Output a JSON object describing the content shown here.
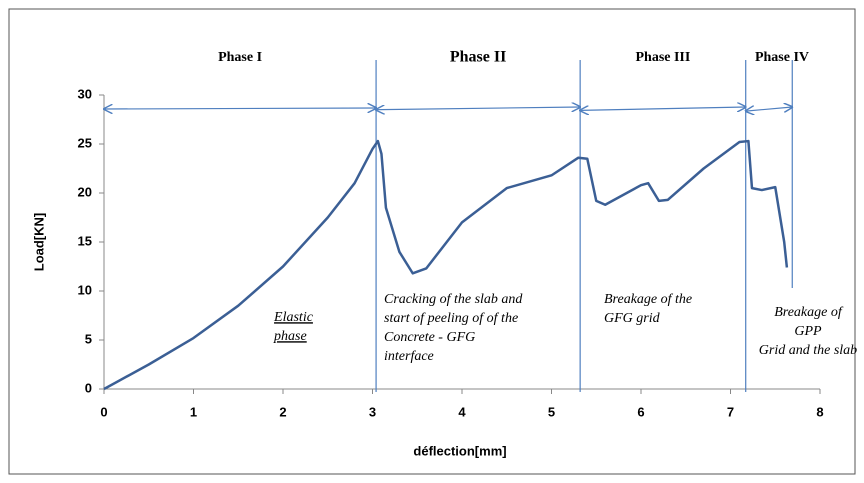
{
  "chart_data": {
    "type": "line",
    "x_label": "déflection[mm]",
    "y_label": "Load[KN]",
    "x": [
      0,
      0.5,
      1,
      1.5,
      2,
      2.5,
      2.8,
      3.0,
      3.06,
      3.1,
      3.15,
      3.3,
      3.45,
      3.6,
      4,
      4.5,
      5,
      5.3,
      5.4,
      5.5,
      5.6,
      6,
      6.08,
      6.2,
      6.3,
      6.7,
      7.1,
      7.2,
      7.24,
      7.35,
      7.5,
      7.6,
      7.63
    ],
    "values": [
      0,
      2.5,
      5.2,
      8.5,
      12.5,
      17.5,
      21,
      24.5,
      25.3,
      24,
      18.5,
      14,
      11.8,
      12.3,
      17,
      20.5,
      21.8,
      23.6,
      23.5,
      19.2,
      18.8,
      20.8,
      21,
      19.2,
      19.3,
      22.5,
      25.2,
      25.3,
      20.5,
      20.3,
      20.6,
      15,
      12.4
    ],
    "color": "#3b5f95",
    "xlim": [
      0,
      8
    ],
    "xticks": [
      0,
      1,
      2,
      3,
      4,
      5,
      6,
      7,
      8
    ],
    "ylim": [
      0,
      30
    ],
    "yticks": [
      0,
      5,
      10,
      15,
      20,
      25,
      30
    ],
    "phases": [
      {
        "label": "Phase I",
        "start": 0,
        "end": 3.04,
        "description": [
          "Elastic",
          "phase"
        ]
      },
      {
        "label": "Phase II",
        "start": 3.04,
        "end": 5.32,
        "description": [
          "Cracking of the slab and",
          "start of peeling of of the",
          " Concrete - GFG",
          " interface"
        ]
      },
      {
        "label": "Phase III",
        "start": 5.32,
        "end": 7.17,
        "description": [
          "Breakage  of  the",
          "GFG grid"
        ]
      },
      {
        "label": "Phase IV",
        "start": 7.17,
        "end": 7.69,
        "description": [
          "Breakage of",
          "GPP",
          "Grid and the slab"
        ]
      }
    ]
  }
}
